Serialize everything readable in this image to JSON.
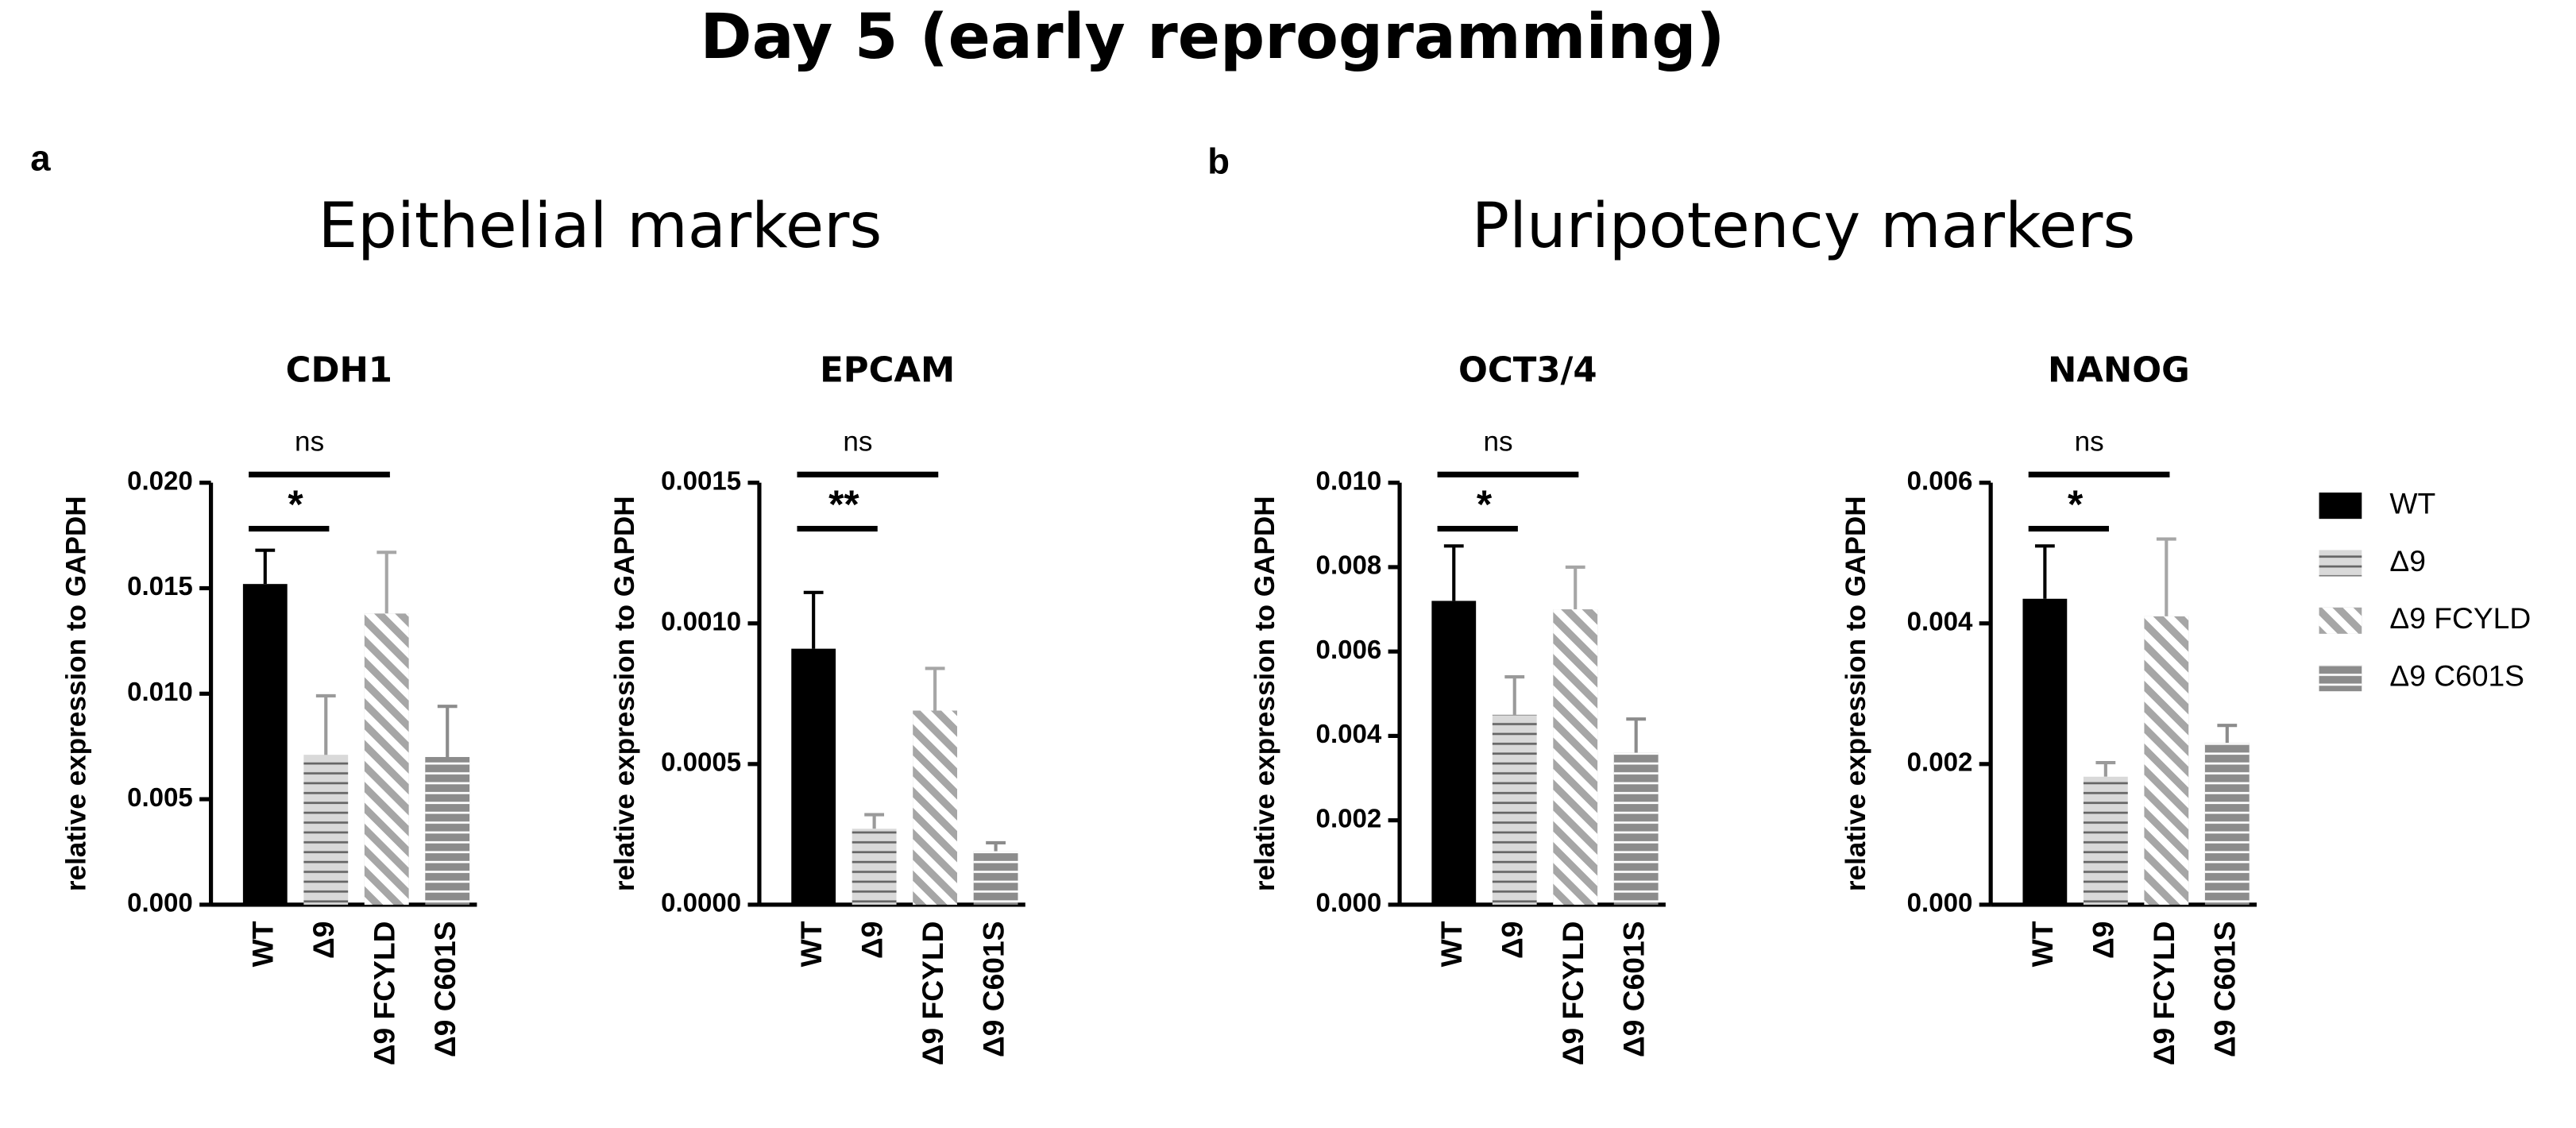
{
  "title": "Day 5 (early reprogramming)",
  "panels": [
    {
      "label": "a",
      "title": "Epithelial markers"
    },
    {
      "label": "b",
      "title": "Pluripotency markers"
    }
  ],
  "legend": {
    "position": "right"
  },
  "chart_data": [
    {
      "type": "bar",
      "title": "CDH1",
      "ylabel": "relative expression to GAPDH",
      "categories": [
        "WT",
        "Δ9",
        "Δ9 FCYLD",
        "Δ9 C601S"
      ],
      "values": [
        0.0152,
        0.0071,
        0.0138,
        0.007
      ],
      "errors": [
        0.0016,
        0.0028,
        0.0029,
        0.0024
      ],
      "colors": [
        "#000000",
        "#d9d9d9",
        "#a6a6a6",
        "#8c8c8c"
      ],
      "patterns": [
        "solid",
        "dark-horizontal-lines",
        "white-diagonal-stripes",
        "white-horizontal-lines"
      ],
      "ylim": [
        0,
        0.02
      ],
      "yticks": [
        {
          "value": 0,
          "label": "0.000"
        },
        {
          "value": 0.005,
          "label": "0.005"
        },
        {
          "value": 0.01,
          "label": "0.010"
        },
        {
          "value": 0.015,
          "label": "0.015"
        },
        {
          "value": 0.02,
          "label": "0.020"
        }
      ],
      "significance": [
        {
          "from": 0,
          "to": 1,
          "label": "*"
        },
        {
          "from": 0,
          "to": 2,
          "label": "ns"
        }
      ]
    },
    {
      "type": "bar",
      "title": "EPCAM",
      "ylabel": "relative expression to GAPDH",
      "categories": [
        "WT",
        "Δ9",
        "Δ9 FCYLD",
        "Δ9 C601S"
      ],
      "values": [
        0.00091,
        0.00027,
        0.00069,
        0.00019
      ],
      "errors": [
        0.0002,
        5e-05,
        0.00015,
        3e-05
      ],
      "colors": [
        "#000000",
        "#d9d9d9",
        "#a6a6a6",
        "#8c8c8c"
      ],
      "patterns": [
        "solid",
        "dark-horizontal-lines",
        "white-diagonal-stripes",
        "white-horizontal-lines"
      ],
      "ylim": [
        0,
        0.0015
      ],
      "yticks": [
        {
          "value": 0,
          "label": "0.0000"
        },
        {
          "value": 0.0005,
          "label": "0.0005"
        },
        {
          "value": 0.001,
          "label": "0.0010"
        },
        {
          "value": 0.0015,
          "label": "0.0015"
        }
      ],
      "significance": [
        {
          "from": 0,
          "to": 1,
          "label": "**"
        },
        {
          "from": 0,
          "to": 2,
          "label": "ns"
        }
      ]
    },
    {
      "type": "bar",
      "title": "OCT3/4",
      "ylabel": "relative expression to GAPDH",
      "categories": [
        "WT",
        "Δ9",
        "Δ9 FCYLD",
        "Δ9 C601S"
      ],
      "values": [
        0.0072,
        0.0045,
        0.007,
        0.0036
      ],
      "errors": [
        0.0013,
        0.0009,
        0.001,
        0.0008
      ],
      "colors": [
        "#000000",
        "#d9d9d9",
        "#a6a6a6",
        "#8c8c8c"
      ],
      "patterns": [
        "solid",
        "dark-horizontal-lines",
        "white-diagonal-stripes",
        "white-horizontal-lines"
      ],
      "ylim": [
        0,
        0.01
      ],
      "yticks": [
        {
          "value": 0,
          "label": "0.000"
        },
        {
          "value": 0.002,
          "label": "0.002"
        },
        {
          "value": 0.004,
          "label": "0.004"
        },
        {
          "value": 0.006,
          "label": "0.006"
        },
        {
          "value": 0.008,
          "label": "0.008"
        },
        {
          "value": 0.01,
          "label": "0.010"
        }
      ],
      "significance": [
        {
          "from": 0,
          "to": 1,
          "label": "*"
        },
        {
          "from": 0,
          "to": 2,
          "label": "ns"
        }
      ]
    },
    {
      "type": "bar",
      "title": "NANOG",
      "ylabel": "relative expression to GAPDH",
      "categories": [
        "WT",
        "Δ9",
        "Δ9 FCYLD",
        "Δ9 C601S"
      ],
      "values": [
        0.00435,
        0.00182,
        0.0041,
        0.0023
      ],
      "errors": [
        0.00075,
        0.0002,
        0.0011,
        0.00025
      ],
      "colors": [
        "#000000",
        "#d9d9d9",
        "#a6a6a6",
        "#8c8c8c"
      ],
      "patterns": [
        "solid",
        "dark-horizontal-lines",
        "white-diagonal-stripes",
        "white-horizontal-lines"
      ],
      "ylim": [
        0,
        0.006
      ],
      "yticks": [
        {
          "value": 0,
          "label": "0.000"
        },
        {
          "value": 0.002,
          "label": "0.002"
        },
        {
          "value": 0.004,
          "label": "0.004"
        },
        {
          "value": 0.006,
          "label": "0.006"
        }
      ],
      "significance": [
        {
          "from": 0,
          "to": 1,
          "label": "*"
        },
        {
          "from": 0,
          "to": 2,
          "label": "ns"
        }
      ]
    }
  ]
}
